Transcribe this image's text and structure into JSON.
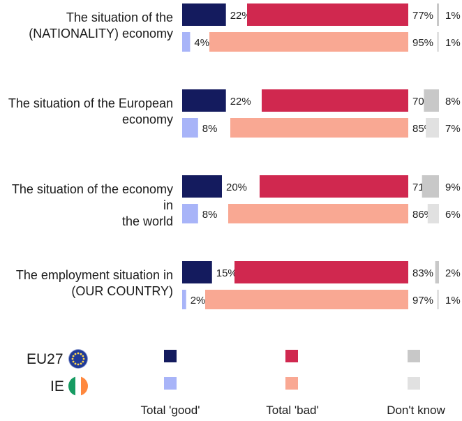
{
  "chart_data": {
    "type": "bar",
    "orientation": "horizontal",
    "categories": [
      "The situation of the (NATIONALITY) economy",
      "The situation of the European economy",
      "The situation of the economy in the world",
      "The employment situation in (OUR COUNTRY)"
    ],
    "category_lines": [
      [
        "The situation of the",
        "(NATIONALITY) economy"
      ],
      [
        "The situation of the European",
        "economy"
      ],
      [
        "The situation of the economy in",
        "the world"
      ],
      [
        "The employment situation in",
        "(OUR COUNTRY)"
      ]
    ],
    "groups": [
      {
        "name": "EU27",
        "good": [
          22,
          22,
          20,
          15
        ],
        "bad": [
          77,
          70,
          71,
          83
        ],
        "dont_know": [
          1,
          8,
          9,
          2
        ]
      },
      {
        "name": "IE",
        "good": [
          4,
          8,
          8,
          2
        ],
        "bad": [
          95,
          85,
          86,
          97
        ],
        "dont_know": [
          1,
          7,
          6,
          1
        ]
      }
    ],
    "measures": [
      "Total 'good'",
      "Total 'bad'",
      "Don't know"
    ],
    "value_suffix": "%",
    "colors": {
      "EU27": {
        "good": "#141b5e",
        "bad": "#d0284f",
        "dont_know": "#c8c8c8"
      },
      "IE": {
        "good": "#a8b4f8",
        "bad": "#f9a893",
        "dont_know": "#e1e1e1"
      }
    }
  },
  "legend": {
    "groups": [
      "EU27",
      "IE"
    ],
    "measures": [
      "Total 'good'",
      "Total 'bad'",
      "Don't know"
    ]
  }
}
